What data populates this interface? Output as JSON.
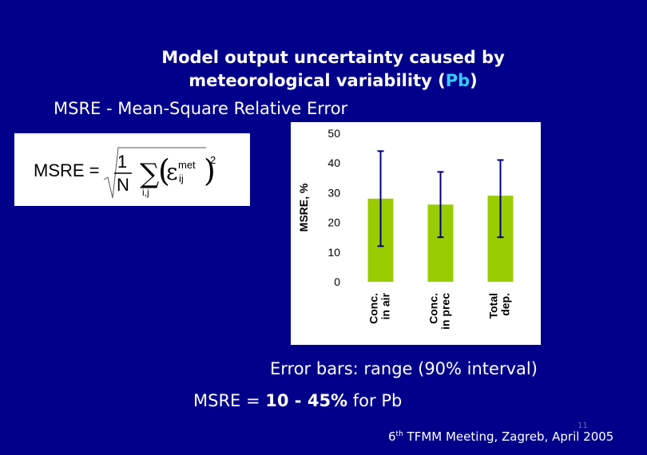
{
  "title_line1": "Model output uncertainty caused by",
  "title_line2_pre": "meteorological variability  (",
  "title_line2_pb": "Pb",
  "title_line2_post": ")",
  "subtitle": "MSRE - Mean-Square Relative Error",
  "formula": {
    "lhs": "MSRE =",
    "frac_num": "1",
    "frac_den": "N",
    "sum_sub": "i,j",
    "epsilon": "ε",
    "sup_label": "met",
    "sub_label": "ij",
    "power": "2"
  },
  "chart_data": {
    "type": "bar",
    "categories": [
      "Conc.\nin air",
      "Conc.\nin prec",
      "Total\ndep."
    ],
    "values": [
      28,
      26,
      29
    ],
    "error_low": [
      12,
      15,
      15
    ],
    "error_high": [
      44,
      37,
      41
    ],
    "ylabel": "MSRE, %",
    "ylim": [
      0,
      50
    ],
    "yticks": [
      0,
      10,
      20,
      30,
      40,
      50
    ],
    "grid": false,
    "bar_color": "#99cc00",
    "error_color": "#000080"
  },
  "note_error_bars": "Error bars: range (90% interval)",
  "note_msre": {
    "pre": "MSRE = ",
    "bold": "10 - 45%",
    "post": " for Pb"
  },
  "slide_number": "11",
  "footer": {
    "pre": "6",
    "sup": "th",
    "post": " TFMM Meeting, Zagreb, April 2005"
  }
}
